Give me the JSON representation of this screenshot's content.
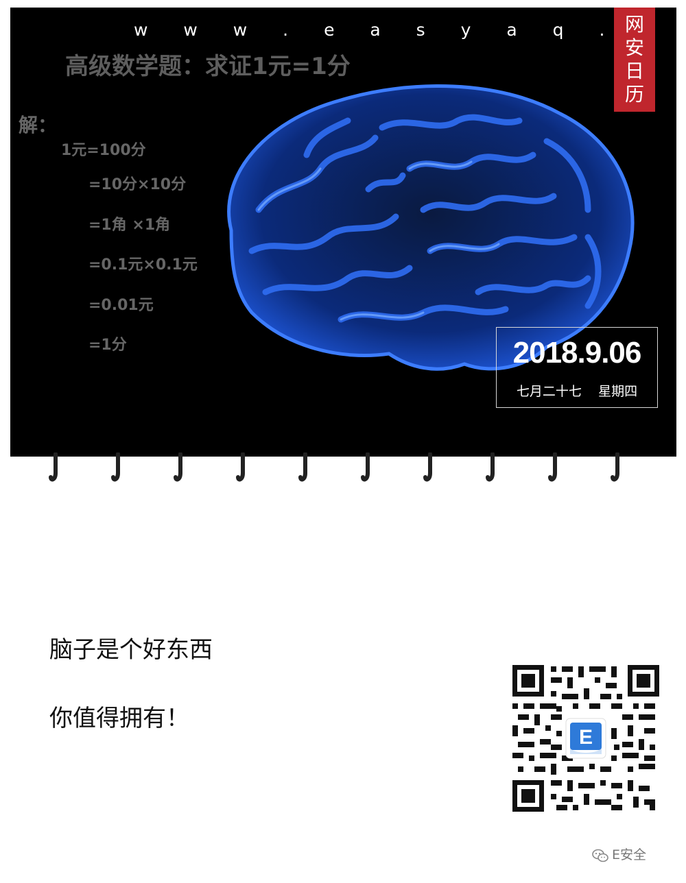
{
  "header": {
    "site_url": "w w w . e a s y a q . c o m",
    "badge": [
      "网",
      "安",
      "日",
      "历"
    ]
  },
  "problem": {
    "title": "高级数学题：求证1元=1分",
    "solution_label": "解：",
    "steps": [
      "1元=100分",
      "=10分×10分",
      "=1角 ×1角",
      "=0.1元×0.1元",
      "=0.01元",
      "=1分"
    ]
  },
  "date_card": {
    "date": "2018.9.06",
    "lunar_weekday": "七月二十七    星期四"
  },
  "captions": [
    "脑子是个好东西",
    "你值得拥有！"
  ],
  "qr": {
    "center_letter": "E"
  },
  "watermark": {
    "icon": "wechat-icon",
    "text": "E安全"
  },
  "colors": {
    "badge": "#c0262d",
    "brain": "#2e6cf0",
    "panel": "#000000"
  }
}
